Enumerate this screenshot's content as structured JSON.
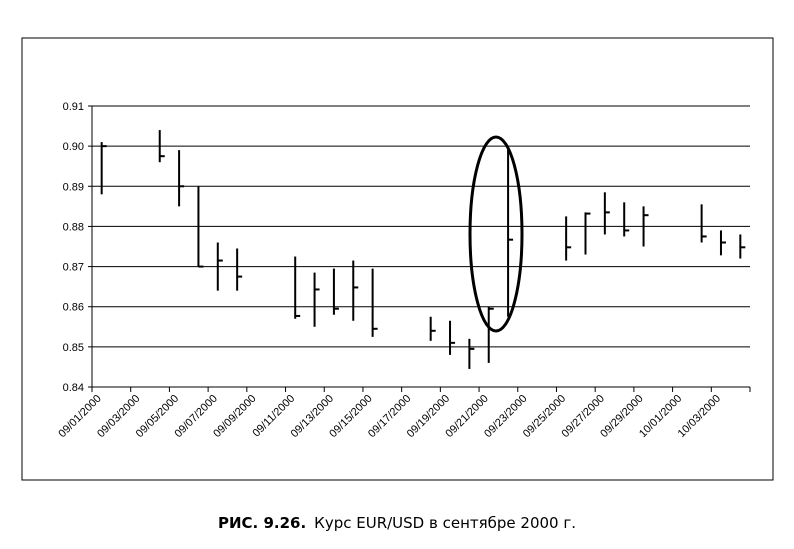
{
  "chart_data": {
    "type": "hlc",
    "categories": [
      "09/01/2000",
      null,
      "09/03/2000",
      null,
      "09/05/2000",
      null,
      "09/07/2000",
      null,
      "09/09/2000",
      null,
      "09/11/2000",
      null,
      "09/13/2000",
      null,
      "09/15/2000",
      null,
      "09/17/2000",
      null,
      "09/19/2000",
      null,
      "09/21/2000",
      null,
      "09/23/2000",
      null,
      "09/25/2000",
      null,
      "09/27/2000",
      null,
      "09/29/2000",
      null,
      "10/01/2000",
      null,
      "10/03/2000",
      null
    ],
    "high": [
      0.901,
      null,
      null,
      0.904,
      0.899,
      0.89,
      0.876,
      0.8745,
      null,
      null,
      0.8725,
      0.8685,
      0.8695,
      0.8715,
      0.8695,
      null,
      null,
      0.8575,
      0.8565,
      0.852,
      0.86,
      0.9,
      null,
      null,
      0.8825,
      0.8835,
      0.8885,
      0.886,
      0.885,
      null,
      null,
      0.8855,
      0.879,
      0.878
    ],
    "low": [
      0.888,
      null,
      null,
      0.896,
      0.885,
      0.87,
      0.864,
      0.864,
      null,
      null,
      0.857,
      0.855,
      0.858,
      0.8565,
      0.8525,
      null,
      null,
      0.8515,
      0.848,
      0.8445,
      0.846,
      0.8575,
      null,
      null,
      0.8715,
      0.873,
      0.878,
      0.8775,
      0.875,
      null,
      null,
      0.876,
      0.8728,
      0.872
    ],
    "close": [
      0.9,
      null,
      null,
      0.8975,
      0.89,
      0.87,
      0.8715,
      0.8675,
      null,
      null,
      0.8577,
      0.8643,
      0.8595,
      0.8648,
      0.8545,
      null,
      null,
      0.854,
      0.851,
      0.8495,
      0.8595,
      0.8767,
      null,
      null,
      0.8748,
      0.8832,
      0.8835,
      0.879,
      0.8828,
      null,
      null,
      0.8775,
      0.876,
      0.8748
    ],
    "color": "#000000",
    "ylim": [
      0.84,
      0.91
    ],
    "yticks": [
      0.84,
      0.85,
      0.86,
      0.87,
      0.88,
      0.89,
      {
        "value": 0.9,
        "label": "0.90"
      },
      0.91
    ],
    "grid": true
  },
  "caption": {
    "label": "РИС. 9.26.",
    "text": "Курс EUR/USD в сентябре 2000 г."
  }
}
